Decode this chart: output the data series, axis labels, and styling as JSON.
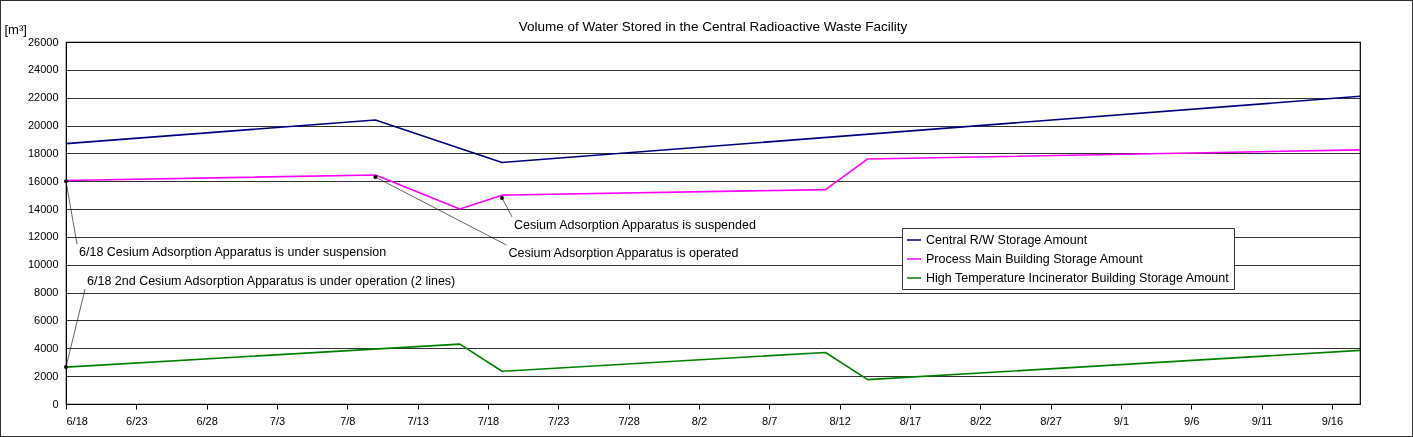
{
  "chart_data": {
    "type": "line",
    "title": "Volume of Water Stored in the Central Radioactive Waste Facility",
    "ylabel": "[m³]",
    "xlim": [
      "--06-18",
      "--09-18"
    ],
    "xticks": [
      {
        "value": "--06-18",
        "label": "6/18"
      },
      {
        "value": "--06-23",
        "label": "6/23"
      },
      {
        "value": "--06-28",
        "label": "6/28"
      },
      {
        "value": "--07-03",
        "label": "7/3"
      },
      {
        "value": "--07-08",
        "label": "7/8"
      },
      {
        "value": "--07-13",
        "label": "7/13"
      },
      {
        "value": "--07-18",
        "label": "7/18"
      },
      {
        "value": "--07-23",
        "label": "7/23"
      },
      {
        "value": "--07-28",
        "label": "7/28"
      },
      {
        "value": "--08-02",
        "label": "8/2"
      },
      {
        "value": "--08-07",
        "label": "8/7"
      },
      {
        "value": "--08-12",
        "label": "8/12"
      },
      {
        "value": "--08-17",
        "label": "8/17"
      },
      {
        "value": "--08-22",
        "label": "8/22"
      },
      {
        "value": "--08-27",
        "label": "8/27"
      },
      {
        "value": "--09-01",
        "label": "9/1"
      },
      {
        "value": "--09-06",
        "label": "9/6"
      },
      {
        "value": "--09-11",
        "label": "9/11"
      },
      {
        "value": "--09-16",
        "label": "9/16"
      }
    ],
    "ylim": [
      0,
      26000
    ],
    "yticks": [
      0,
      2000,
      4000,
      6000,
      8000,
      10000,
      12000,
      14000,
      16000,
      18000,
      20000,
      22000,
      24000,
      26000
    ],
    "grid": "y",
    "legend": "right",
    "line_style": "solid",
    "series": [
      {
        "name": "Central R/W Storage Amount",
        "color": "#000080",
        "x": [
          "--06-18",
          "--07-10",
          "--07-19",
          "--09-18"
        ],
        "values": [
          18700,
          20400,
          17350,
          22100
        ]
      },
      {
        "name": "Process Main Building Storage Amount",
        "color": "#ff00ff",
        "x": [
          "--06-18",
          "--07-10",
          "--07-16",
          "--07-19",
          "--08-11",
          "--08-14",
          "--09-18"
        ],
        "values": [
          16050,
          16450,
          14000,
          15000,
          15400,
          17600,
          18250
        ]
      },
      {
        "name": "High Temperature Incinerator Building Storage Amount",
        "color": "#008000",
        "x": [
          "--06-18",
          "--07-16",
          "--07-19",
          "--08-11",
          "--08-14",
          "--09-18"
        ],
        "values": [
          2650,
          4300,
          2350,
          3700,
          1750,
          3850
        ]
      }
    ],
    "annotations": [
      {
        "text": "6/18 Cesium Adsorption Apparatus is under suspension",
        "x": "--06-18",
        "y": 16000
      },
      {
        "text": "6/18 2nd Cesium Adsorption Apparatus is under operation (2 lines)",
        "x": "--06-18",
        "y": 2650
      },
      {
        "text": "Cesium Adsorption Apparatus is operated",
        "x": "--07-10",
        "y": 16300
      },
      {
        "text": "Cesium Adsorption Apparatus is suspended",
        "x": "--07-19",
        "y": 14800
      }
    ]
  }
}
